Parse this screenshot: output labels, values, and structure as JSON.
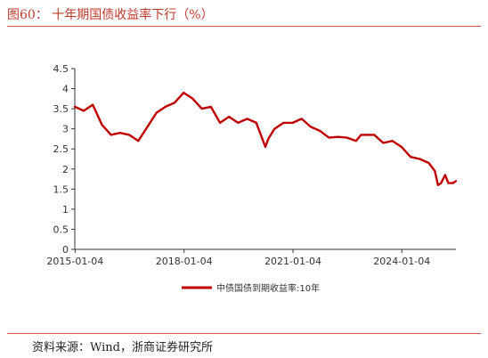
{
  "figure": {
    "title": "图60：  十年期国债收益率下行（%）",
    "source": "资料来源：Wind，浙商证券研究所"
  },
  "chart_data": {
    "type": "line",
    "title": "",
    "xlabel": "",
    "ylabel": "",
    "ylim": [
      0,
      4.5
    ],
    "yticks": [
      "0",
      "0.5",
      "1",
      "1.5",
      "2",
      "2.5",
      "3",
      "3.5",
      "4",
      "4.5"
    ],
    "xlim": [
      "2015-01-01",
      "2025-07-01"
    ],
    "xticks": [
      "2015-01-04",
      "2018-01-04",
      "2021-01-04",
      "2024-01-04"
    ],
    "grid": false,
    "legend_position": "bottom",
    "series": [
      {
        "name": "中债国债到期收益率:10年",
        "color": "#c00000",
        "x": [
          "2015-01-01",
          "2015-04-01",
          "2015-07-01",
          "2015-10-01",
          "2016-01-01",
          "2016-04-01",
          "2016-07-01",
          "2016-10-01",
          "2017-01-01",
          "2017-04-01",
          "2017-07-01",
          "2017-10-01",
          "2018-01-01",
          "2018-04-01",
          "2018-07-01",
          "2018-10-01",
          "2019-01-01",
          "2019-04-01",
          "2019-07-01",
          "2019-10-01",
          "2020-01-01",
          "2020-02-15",
          "2020-04-01",
          "2020-05-01",
          "2020-07-01",
          "2020-10-01",
          "2021-01-01",
          "2021-04-01",
          "2021-07-01",
          "2021-10-01",
          "2022-01-01",
          "2022-04-01",
          "2022-07-01",
          "2022-10-01",
          "2022-11-20",
          "2023-01-01",
          "2023-04-01",
          "2023-07-01",
          "2023-10-01",
          "2024-01-01",
          "2024-04-01",
          "2024-07-01",
          "2024-10-01",
          "2024-12-01",
          "2025-01-01",
          "2025-02-01",
          "2025-03-15",
          "2025-04-15",
          "2025-06-01",
          "2025-06-30"
        ],
        "values": [
          3.55,
          3.45,
          3.6,
          3.1,
          2.85,
          2.9,
          2.85,
          2.7,
          3.05,
          3.4,
          3.55,
          3.65,
          3.9,
          3.75,
          3.5,
          3.55,
          3.15,
          3.3,
          3.15,
          3.25,
          3.15,
          2.85,
          2.55,
          2.75,
          3.0,
          3.15,
          3.15,
          3.25,
          3.05,
          2.95,
          2.78,
          2.8,
          2.78,
          2.7,
          2.85,
          2.85,
          2.85,
          2.65,
          2.7,
          2.55,
          2.3,
          2.25,
          2.15,
          1.95,
          1.6,
          1.65,
          1.85,
          1.65,
          1.65,
          1.7
        ]
      }
    ]
  }
}
